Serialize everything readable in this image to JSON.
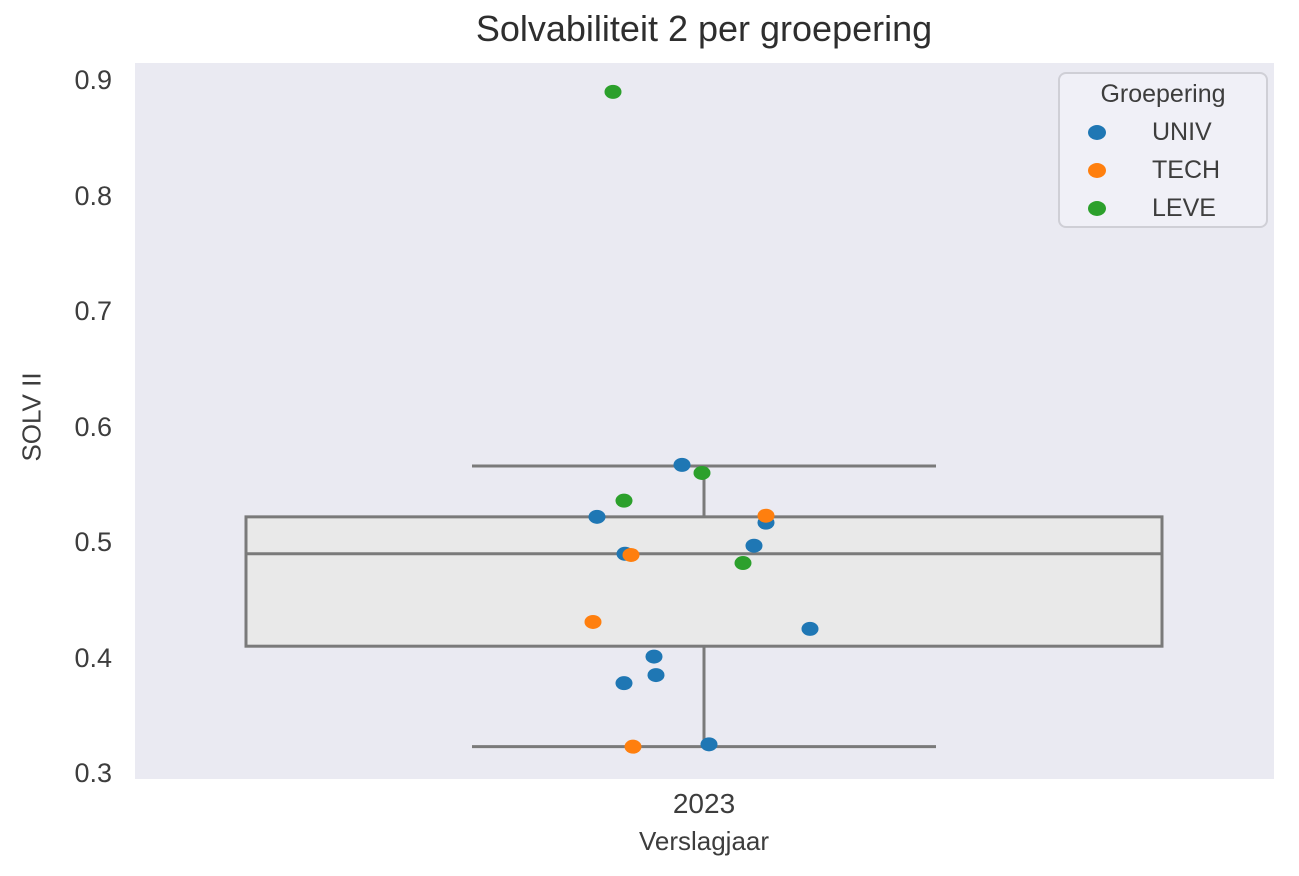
{
  "chart_data": {
    "type": "boxplot+scatter",
    "title": "Solvabiliteit 2 per groepering",
    "xlabel": "Verslagjaar",
    "ylabel": "SOLV II",
    "x_categories": [
      "2023"
    ],
    "ylim": [
      0.295,
      0.915
    ],
    "yticks": [
      0.3,
      0.4,
      0.5,
      0.6,
      0.7,
      0.8,
      0.9
    ],
    "grid": false,
    "plot_background": "#eaeaf2",
    "text_color": "#3d3d3d",
    "box": {
      "category": "2023",
      "whisker_low": 0.323,
      "q1": 0.41,
      "median": 0.49,
      "q3": 0.522,
      "whisker_high": 0.566,
      "fill": "#e9e9e9",
      "line_color": "#7a7a7a"
    },
    "legend": {
      "title": "Groepering",
      "position": "upper right"
    },
    "series": [
      {
        "name": "UNIV",
        "color": "#1f77b4",
        "points": [
          {
            "x": "2023",
            "dx": -22,
            "y": 0.567
          },
          {
            "x": "2023",
            "dx": -107,
            "y": 0.522
          },
          {
            "x": "2023",
            "dx": 62,
            "y": 0.517
          },
          {
            "x": "2023",
            "dx": 50,
            "y": 0.497
          },
          {
            "x": "2023",
            "dx": -79,
            "y": 0.49
          },
          {
            "x": "2023",
            "dx": 106,
            "y": 0.425
          },
          {
            "x": "2023",
            "dx": -50,
            "y": 0.401
          },
          {
            "x": "2023",
            "dx": -48,
            "y": 0.385
          },
          {
            "x": "2023",
            "dx": -80,
            "y": 0.378
          },
          {
            "x": "2023",
            "dx": 5,
            "y": 0.325
          }
        ]
      },
      {
        "name": "TECH",
        "color": "#ff7f0e",
        "points": [
          {
            "x": "2023",
            "dx": 62,
            "y": 0.523
          },
          {
            "x": "2023",
            "dx": -73,
            "y": 0.489
          },
          {
            "x": "2023",
            "dx": -111,
            "y": 0.431
          },
          {
            "x": "2023",
            "dx": -71,
            "y": 0.323
          }
        ]
      },
      {
        "name": "LEVE",
        "color": "#2ca02c",
        "points": [
          {
            "x": "2023",
            "dx": -91,
            "y": 0.89
          },
          {
            "x": "2023",
            "dx": -2,
            "y": 0.56
          },
          {
            "x": "2023",
            "dx": -80,
            "y": 0.536
          },
          {
            "x": "2023",
            "dx": 39,
            "y": 0.482
          }
        ]
      }
    ]
  }
}
